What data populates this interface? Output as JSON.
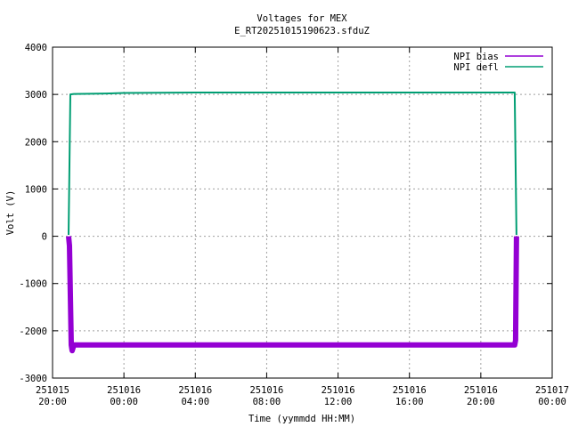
{
  "chart_data": {
    "type": "line",
    "title": "Voltages for MEX",
    "subtitle": "E_RT20251015190623.sfduZ",
    "xlabel": "Time (yymmdd HH:MM)",
    "ylabel": "Volt (V)",
    "ylim": [
      -3000,
      4000
    ],
    "yticks": [
      -3000,
      -2000,
      -1000,
      0,
      1000,
      2000,
      3000,
      4000
    ],
    "xlim_hours": [
      0,
      28
    ],
    "xticks": [
      {
        "hour": 0,
        "date": "251015",
        "time": "20:00"
      },
      {
        "hour": 4,
        "date": "251016",
        "time": "00:00"
      },
      {
        "hour": 8,
        "date": "251016",
        "time": "04:00"
      },
      {
        "hour": 12,
        "date": "251016",
        "time": "08:00"
      },
      {
        "hour": 16,
        "date": "251016",
        "time": "12:00"
      },
      {
        "hour": 20,
        "date": "251016",
        "time": "16:00"
      },
      {
        "hour": 24,
        "date": "251016",
        "time": "20:00"
      },
      {
        "hour": 28,
        "date": "251017",
        "time": "00:00"
      }
    ],
    "grid": true,
    "legend_position": "top-right",
    "series": [
      {
        "name": "NPI bias",
        "color": "#9400d3",
        "points": [
          [
            0.9,
            0
          ],
          [
            0.95,
            -200
          ],
          [
            1.05,
            -2300
          ],
          [
            1.1,
            -2420
          ],
          [
            1.2,
            -2300
          ],
          [
            5,
            -2300
          ],
          [
            10,
            -2300
          ],
          [
            15,
            -2300
          ],
          [
            20,
            -2300
          ],
          [
            25.9,
            -2300
          ],
          [
            25.95,
            -2200
          ],
          [
            26.0,
            0
          ]
        ]
      },
      {
        "name": "NPI defl",
        "color": "#009e73",
        "points": [
          [
            0.9,
            30
          ],
          [
            1.0,
            3000
          ],
          [
            1.2,
            3010
          ],
          [
            3.0,
            3020
          ],
          [
            4.0,
            3030
          ],
          [
            8.0,
            3040
          ],
          [
            12.0,
            3040
          ],
          [
            16.0,
            3040
          ],
          [
            20.0,
            3040
          ],
          [
            25.9,
            3040
          ],
          [
            26.0,
            30
          ]
        ]
      }
    ]
  }
}
